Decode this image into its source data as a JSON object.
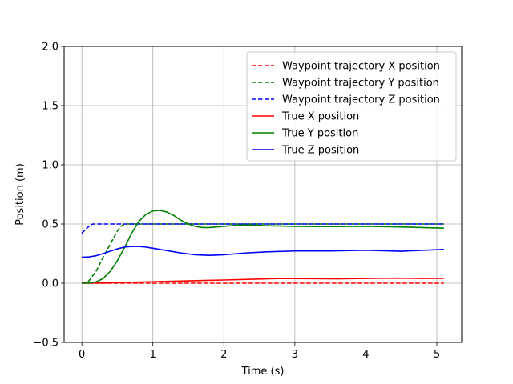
{
  "chart_data": {
    "type": "line",
    "title": "",
    "xlabel": "Time (s)",
    "ylabel": "Position (m)",
    "xlim": [
      -0.25,
      5.35
    ],
    "ylim": [
      -0.5,
      2.0
    ],
    "xticks": [
      0,
      1,
      2,
      3,
      4,
      5
    ],
    "yticks": [
      -0.5,
      0.0,
      0.5,
      1.0,
      1.5,
      2.0
    ],
    "xtick_labels": [
      "0",
      "1",
      "2",
      "3",
      "4",
      "5"
    ],
    "ytick_labels": [
      "−0.5",
      "0.0",
      "0.5",
      "1.0",
      "1.5",
      "2.0"
    ],
    "grid": true,
    "legend_position": "top-right",
    "series": [
      {
        "name": "Waypoint trajectory X position",
        "color": "#ff0000",
        "dash": "dashed",
        "x": [
          0,
          5.1
        ],
        "y": [
          0.0,
          0.0
        ]
      },
      {
        "name": "Waypoint trajectory Y position",
        "color": "#008000",
        "dash": "dashed",
        "x": [
          0,
          0.05,
          0.1,
          0.2,
          0.3,
          0.4,
          0.5,
          0.55,
          0.6,
          0.62,
          1.0,
          2.0,
          3.0,
          4.0,
          5.1
        ],
        "y": [
          0.0,
          0.005,
          0.02,
          0.1,
          0.22,
          0.33,
          0.44,
          0.48,
          0.5,
          0.5,
          0.5,
          0.5,
          0.5,
          0.5,
          0.5
        ]
      },
      {
        "name": "Waypoint trajectory Z position",
        "color": "#0000ff",
        "dash": "dashed",
        "x": [
          0,
          0.03,
          0.06,
          0.1,
          0.13,
          0.16,
          0.2,
          1.0,
          2.0,
          3.0,
          4.0,
          5.1
        ],
        "y": [
          0.42,
          0.44,
          0.46,
          0.48,
          0.495,
          0.5,
          0.5,
          0.5,
          0.5,
          0.5,
          0.5,
          0.5
        ]
      },
      {
        "name": "True X position",
        "color": "#ff0000",
        "dash": "solid",
        "x": [
          0,
          0.3,
          0.6,
          1.0,
          1.5,
          2.0,
          2.5,
          2.8,
          3.2,
          3.6,
          4.0,
          4.4,
          4.8,
          5.1
        ],
        "y": [
          0.0,
          0.002,
          0.006,
          0.012,
          0.02,
          0.027,
          0.035,
          0.04,
          0.038,
          0.037,
          0.04,
          0.043,
          0.04,
          0.041
        ]
      },
      {
        "name": "True Y position",
        "color": "#008000",
        "dash": "solid",
        "x": [
          0,
          0.1,
          0.2,
          0.3,
          0.4,
          0.5,
          0.6,
          0.7,
          0.8,
          0.9,
          1.0,
          1.1,
          1.2,
          1.3,
          1.4,
          1.5,
          1.6,
          1.7,
          1.8,
          2.0,
          2.2,
          2.4,
          2.6,
          3.0,
          3.5,
          4.0,
          4.5,
          5.1
        ],
        "y": [
          0.0,
          0.0,
          0.01,
          0.04,
          0.1,
          0.19,
          0.3,
          0.42,
          0.52,
          0.58,
          0.61,
          0.615,
          0.6,
          0.57,
          0.53,
          0.5,
          0.48,
          0.47,
          0.47,
          0.48,
          0.49,
          0.49,
          0.485,
          0.48,
          0.478,
          0.48,
          0.475,
          0.465
        ]
      },
      {
        "name": "True Z position",
        "color": "#0000ff",
        "dash": "solid",
        "x": [
          0,
          0.1,
          0.2,
          0.3,
          0.4,
          0.5,
          0.6,
          0.7,
          0.8,
          0.9,
          1.0,
          1.2,
          1.4,
          1.6,
          1.8,
          2.0,
          2.3,
          2.6,
          3.0,
          3.5,
          4.0,
          4.5,
          5.1
        ],
        "y": [
          0.22,
          0.222,
          0.232,
          0.25,
          0.27,
          0.29,
          0.305,
          0.31,
          0.31,
          0.305,
          0.295,
          0.275,
          0.255,
          0.24,
          0.235,
          0.24,
          0.255,
          0.265,
          0.272,
          0.272,
          0.278,
          0.27,
          0.285
        ]
      }
    ]
  }
}
